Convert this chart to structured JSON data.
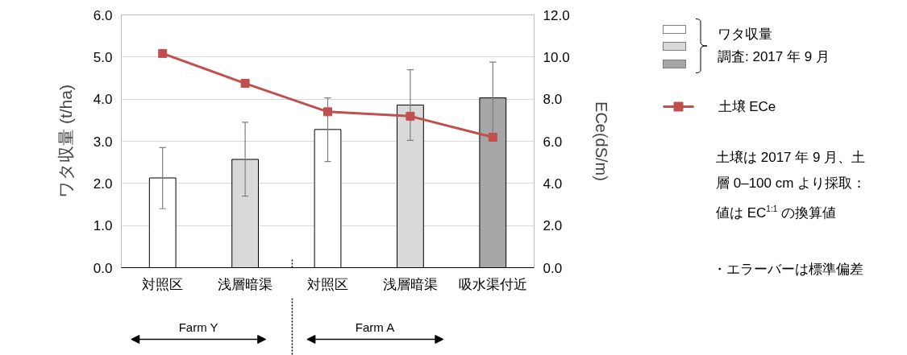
{
  "chart_data": {
    "type": "bar",
    "categories": [
      "対照区",
      "浅層暗渠",
      "対照区",
      "浅層暗渠",
      "吸水渠付近"
    ],
    "ylabel": "ワタ収量 (t/ha)",
    "y2label": "ECe(dS/m)",
    "ylim": [
      0,
      6
    ],
    "yticks": [
      {
        "value": 0,
        "label": "0.0"
      },
      {
        "value": 1,
        "label": "1.0"
      },
      {
        "value": 2,
        "label": "2.0"
      },
      {
        "value": 3,
        "label": "3.0"
      },
      {
        "value": 4,
        "label": "4.0"
      },
      {
        "value": 5,
        "label": "5.0"
      },
      {
        "value": 6,
        "label": "6.0"
      }
    ],
    "y2lim": [
      0,
      12
    ],
    "y2ticks": [
      {
        "value": 0,
        "label": "0.0"
      },
      {
        "value": 2,
        "label": "2.0"
      },
      {
        "value": 4,
        "label": "4.0"
      },
      {
        "value": 6,
        "label": "6.0"
      },
      {
        "value": 8,
        "label": "8.0"
      },
      {
        "value": 10,
        "label": "10.0"
      },
      {
        "value": 12,
        "label": "12.0"
      }
    ],
    "grid": "y",
    "legend": "right",
    "marker": "square",
    "series": [
      {
        "name": "ワタ収量",
        "type": "bar",
        "colors": [
          "#ffffff",
          "#d9d9d9",
          "#ffffff",
          "#d9d9d9",
          "#a6a6a6"
        ],
        "values": [
          2.13,
          2.57,
          3.28,
          3.86,
          4.03
        ],
        "errors": [
          [
            1.4,
            2.85
          ],
          [
            1.7,
            3.45
          ],
          [
            2.52,
            4.03
          ],
          [
            3.02,
            4.7
          ],
          [
            3.18,
            4.88
          ]
        ]
      },
      {
        "name": "土壌 ECe",
        "type": "line",
        "axis": "y2",
        "color": "#c0504d",
        "values": [
          10.17,
          8.75,
          7.4,
          7.19,
          6.19
        ]
      }
    ],
    "annotations": [
      "土壌は 2017 年 9 月、土層 0–100 cm より採取：値は EC$^{1:1}$ の換算値",
      "・エラーバーは標準偏差",
      "Farm Y",
      "Farm A",
      "調査: 2017 年 9 月"
    ]
  }
}
